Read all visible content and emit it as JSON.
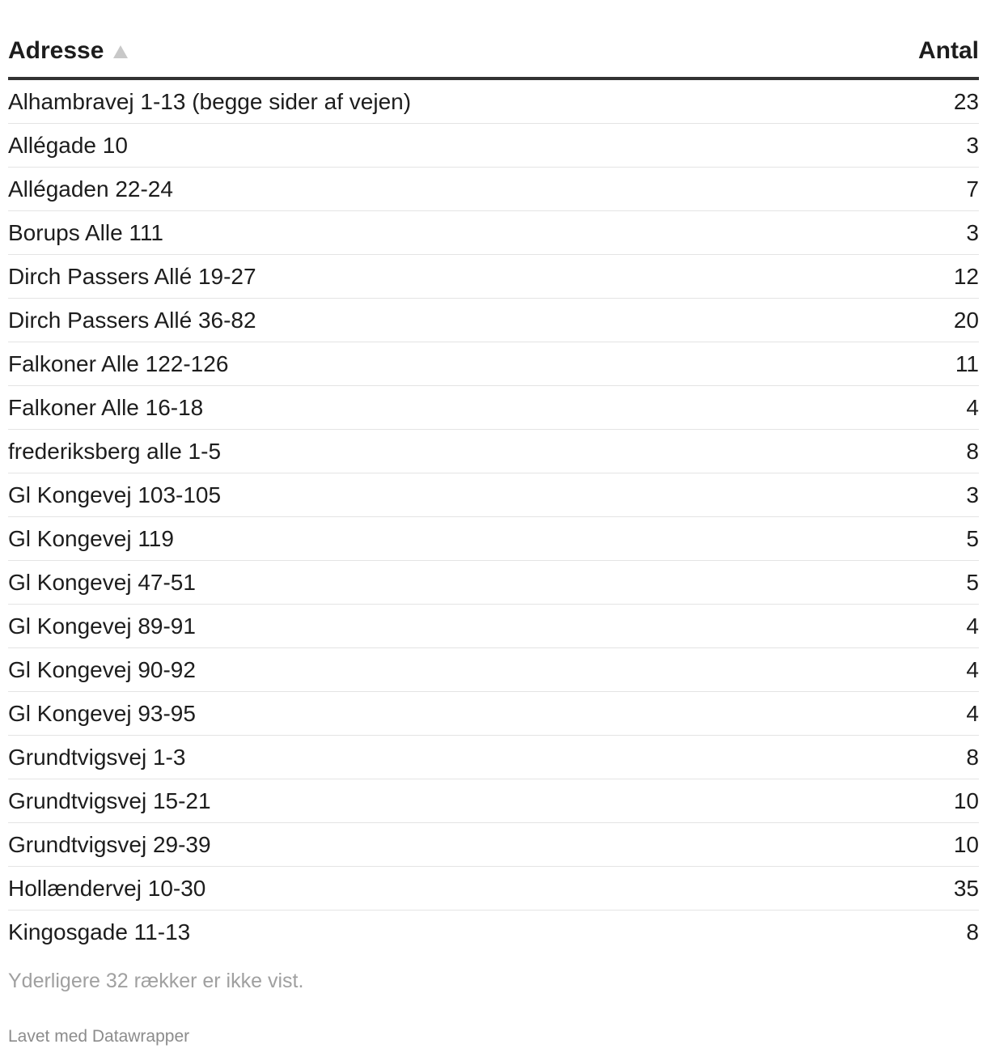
{
  "table": {
    "columns": {
      "address": "Adresse",
      "count": "Antal"
    },
    "sort": {
      "column": "address",
      "direction": "ascending"
    },
    "rows": [
      {
        "address": "Alhambravej 1-13 (begge sider af vejen)",
        "count": "23"
      },
      {
        "address": "Allégade 10",
        "count": "3"
      },
      {
        "address": "Allégaden 22-24",
        "count": "7"
      },
      {
        "address": "Borups Alle 111",
        "count": "3"
      },
      {
        "address": "Dirch Passers Allé 19-27",
        "count": "12"
      },
      {
        "address": "Dirch Passers Allé 36-82",
        "count": "20"
      },
      {
        "address": "Falkoner Alle 122-126",
        "count": "11"
      },
      {
        "address": "Falkoner Alle 16-18",
        "count": "4"
      },
      {
        "address": "frederiksberg alle 1-5",
        "count": "8"
      },
      {
        "address": "Gl Kongevej 103-105",
        "count": "3"
      },
      {
        "address": "Gl Kongevej 119",
        "count": "5"
      },
      {
        "address": "Gl Kongevej 47-51",
        "count": "5"
      },
      {
        "address": "Gl Kongevej 89-91",
        "count": "4"
      },
      {
        "address": "Gl Kongevej 90-92",
        "count": "4"
      },
      {
        "address": "Gl Kongevej 93-95",
        "count": "4"
      },
      {
        "address": "Grundtvigsvej 1-3",
        "count": "8"
      },
      {
        "address": "Grundtvigsvej 15-21",
        "count": "10"
      },
      {
        "address": "Grundtvigsvej 29-39",
        "count": "10"
      },
      {
        "address": "Hollændervej 10-30",
        "count": "35"
      },
      {
        "address": "Kingosgade 11-13",
        "count": "8"
      }
    ],
    "more_rows_note": "Yderligere 32 rækker er ikke vist."
  },
  "footer": {
    "credit": "Lavet med Datawrapper"
  },
  "colors": {
    "text": "#1d1d1d",
    "header_rule": "#333333",
    "row_divider": "#e4e4e4",
    "sort_arrow": "#c8c8c8",
    "muted_text": "#a0a0a0"
  },
  "icons": {
    "sort": "sort-ascending-icon"
  }
}
